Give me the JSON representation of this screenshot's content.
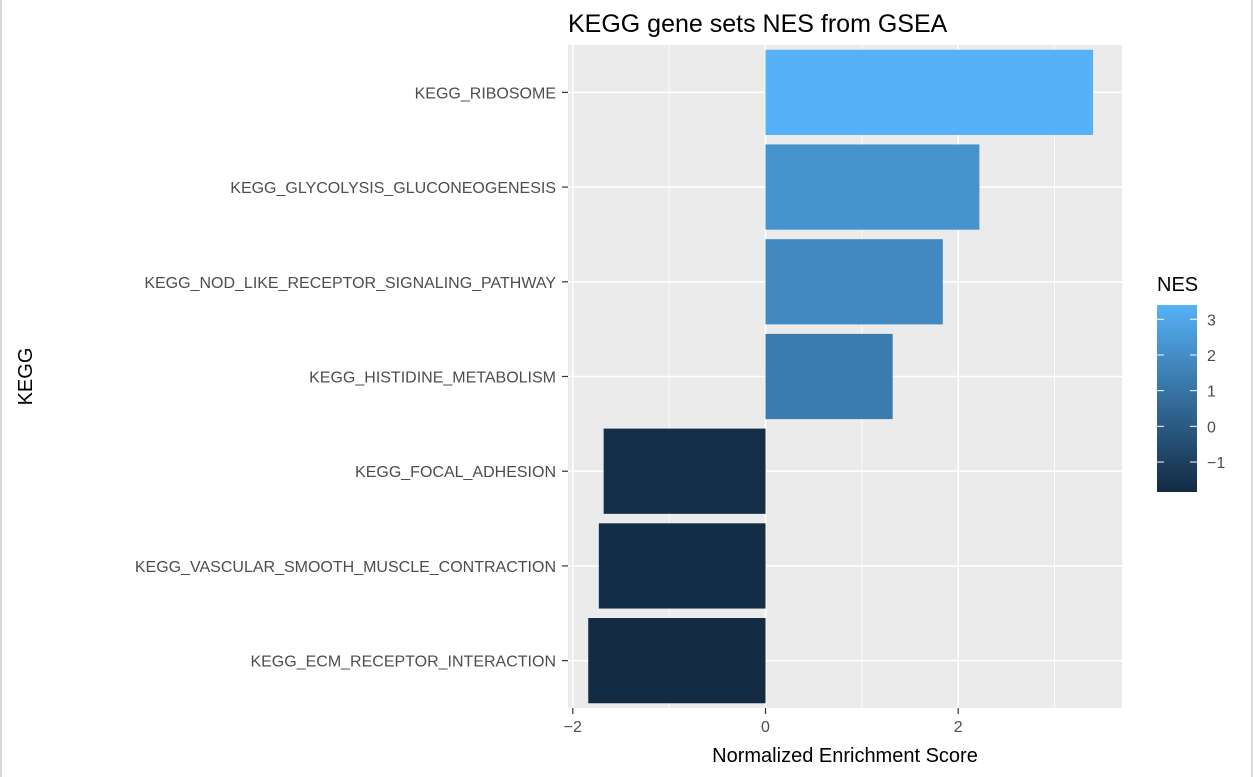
{
  "chart_data": {
    "type": "bar",
    "orientation": "horizontal",
    "title": "KEGG gene sets NES from GSEA",
    "xlabel": "Normalized Enrichment Score",
    "ylabel": "KEGG",
    "categories": [
      "KEGG_RIBOSOME",
      "KEGG_GLYCOLYSIS_GLUCONEOGENESIS",
      "KEGG_NOD_LIKE_RECEPTOR_SIGNALING_PATHWAY",
      "KEGG_HISTIDINE_METABOLISM",
      "KEGG_FOCAL_ADHESION",
      "KEGG_VASCULAR_SMOOTH_MUSCLE_CONTRACTION",
      "KEGG_ECM_RECEPTOR_INTERACTION"
    ],
    "values": [
      3.4,
      2.22,
      1.84,
      1.32,
      -1.68,
      -1.73,
      -1.84
    ],
    "xlim": [
      -2.05,
      3.7
    ],
    "xticks": [
      -2,
      0,
      2
    ],
    "xtick_labels": [
      "−2",
      "0",
      "2"
    ],
    "grid": true,
    "legend": {
      "title": "NES",
      "placement": "right",
      "type": "colorbar",
      "min": -1.84,
      "max": 3.4,
      "ticks": [
        3,
        2,
        1,
        0,
        -1
      ],
      "tick_labels": [
        "3",
        "2",
        "1",
        "0",
        "−1"
      ],
      "color_low": "#132B43",
      "color_high": "#56B1F7"
    }
  }
}
